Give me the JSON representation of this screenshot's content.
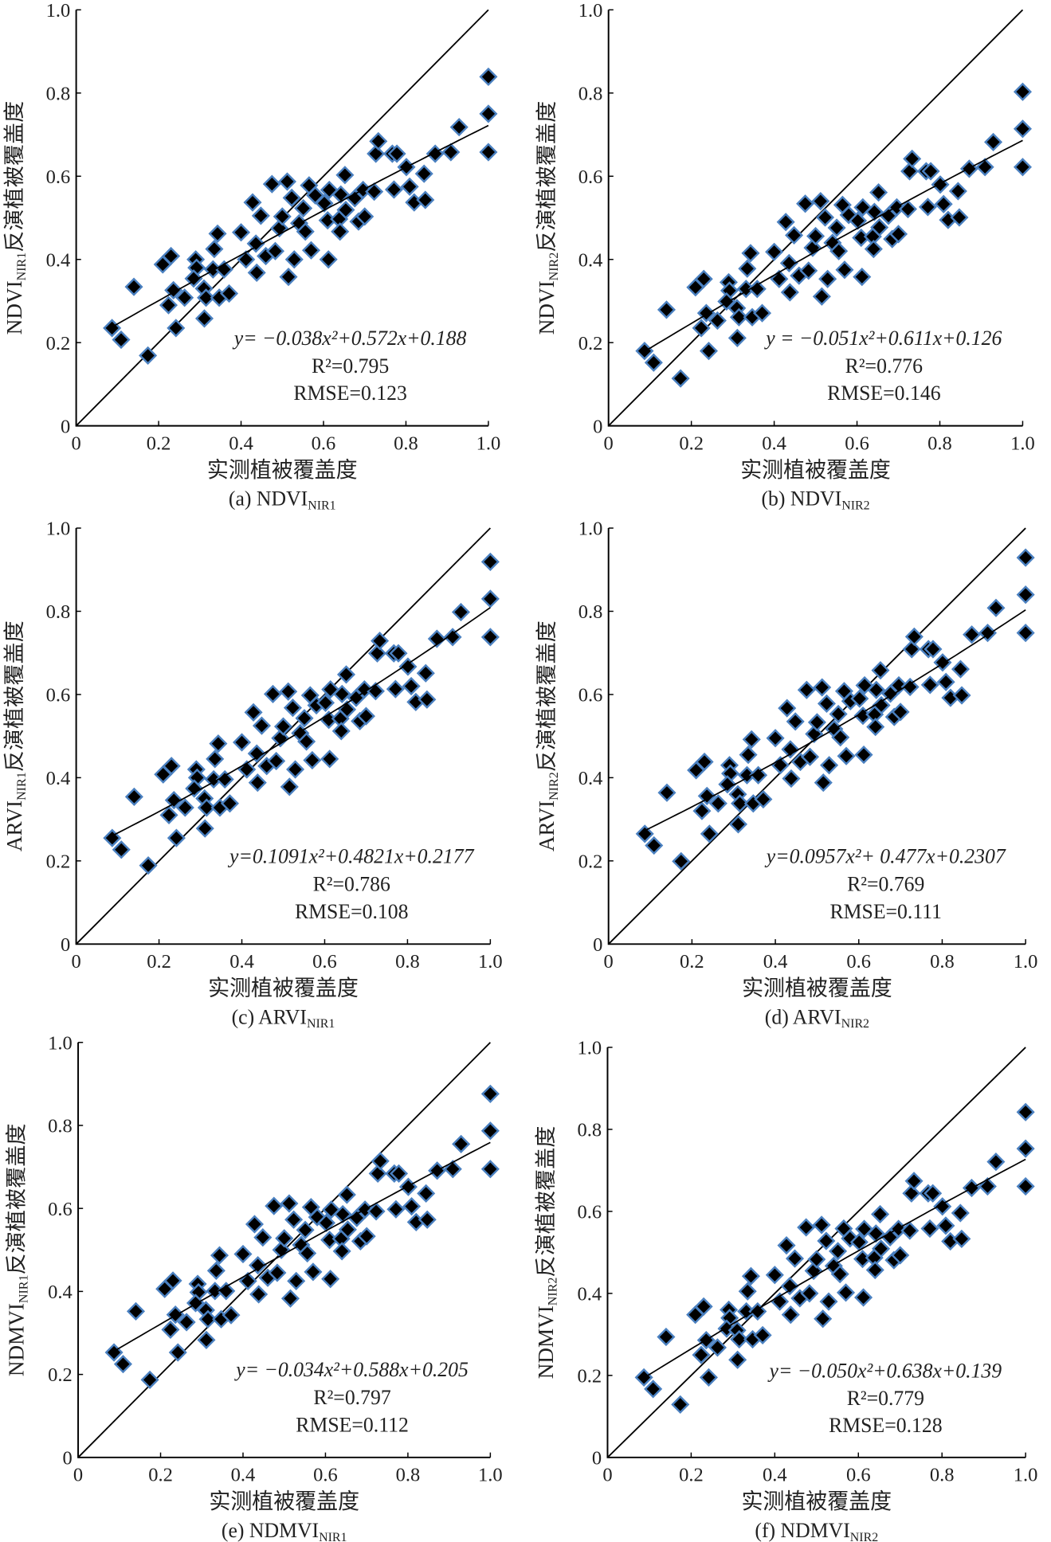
{
  "chart_data": [
    {
      "id": "a",
      "type": "scatter",
      "caption": {
        "main": "(a) NDVI",
        "sub": "NIR1"
      },
      "ylabel": {
        "pre": "NDVI",
        "sub": "NIR1",
        "post": "反演植被覆盖度"
      },
      "xlabel": "实测植被覆盖度",
      "xlim": [
        0,
        1.0
      ],
      "ylim": [
        0,
        1.0
      ],
      "xticks": [
        "0",
        "0.2",
        "0.4",
        "0.6",
        "0.8",
        "1.0"
      ],
      "yticks": [
        "0",
        "0.2",
        "0.4",
        "0.6",
        "0.8",
        "1.0"
      ],
      "fit": {
        "a": -0.038,
        "b": 0.572,
        "c": 0.188
      },
      "equation": "y= −0.038x²+0.572x+0.188",
      "r2": "R²=0.795",
      "rmse": "RMSE=0.123",
      "y": [
        0.235,
        0.207,
        0.169,
        0.334,
        0.388,
        0.408,
        0.29,
        0.326,
        0.235,
        0.308,
        0.4,
        0.38,
        0.354,
        0.33,
        0.258,
        0.308,
        0.376,
        0.425,
        0.462,
        0.308,
        0.376,
        0.318,
        0.465,
        0.4,
        0.537,
        0.438,
        0.368,
        0.505,
        0.408,
        0.581,
        0.42,
        0.475,
        0.503,
        0.587,
        0.358,
        0.548,
        0.4,
        0.487,
        0.523,
        0.467,
        0.578,
        0.422,
        0.554,
        0.535,
        0.494,
        0.567,
        0.4,
        0.497,
        0.467,
        0.556,
        0.603,
        0.519,
        0.547,
        0.491,
        0.567,
        0.503,
        0.563,
        0.654,
        0.684,
        0.654,
        0.568,
        0.654,
        0.622,
        0.575,
        0.537,
        0.606,
        0.543,
        0.654,
        0.658,
        0.718,
        0.839,
        0.75,
        0.658
      ]
    },
    {
      "id": "b",
      "type": "scatter",
      "caption": {
        "main": "(b) NDVI",
        "sub": "NIR2"
      },
      "ylabel": {
        "pre": "NDVI",
        "sub": "NIR2",
        "post": "反演植被覆盖度"
      },
      "xlabel": "实测植被覆盖度",
      "xlim": [
        0,
        1.0
      ],
      "ylim": [
        0,
        1.0
      ],
      "xticks": [
        "0",
        "0.2",
        "0.4",
        "0.6",
        "0.8",
        "1.0"
      ],
      "yticks": [
        "0",
        "0.2",
        "0.4",
        "0.6",
        "0.8",
        "1.0"
      ],
      "fit": {
        "a": -0.051,
        "b": 0.611,
        "c": 0.126
      },
      "equation": "y = −0.051x²+0.611x+0.126",
      "r2": "R²=0.776",
      "rmse": "RMSE=0.146",
      "y": [
        0.18,
        0.152,
        0.114,
        0.279,
        0.333,
        0.353,
        0.235,
        0.271,
        0.18,
        0.253,
        0.345,
        0.325,
        0.299,
        0.283,
        0.211,
        0.261,
        0.329,
        0.378,
        0.415,
        0.261,
        0.329,
        0.271,
        0.418,
        0.353,
        0.49,
        0.391,
        0.321,
        0.458,
        0.361,
        0.534,
        0.373,
        0.428,
        0.456,
        0.54,
        0.311,
        0.501,
        0.353,
        0.44,
        0.476,
        0.42,
        0.531,
        0.375,
        0.507,
        0.493,
        0.452,
        0.525,
        0.358,
        0.455,
        0.425,
        0.514,
        0.561,
        0.477,
        0.505,
        0.449,
        0.525,
        0.461,
        0.521,
        0.612,
        0.642,
        0.612,
        0.526,
        0.612,
        0.58,
        0.533,
        0.495,
        0.564,
        0.501,
        0.618,
        0.622,
        0.682,
        0.803,
        0.714,
        0.622
      ]
    },
    {
      "id": "c",
      "type": "scatter",
      "caption": {
        "main": "(c) ARVI",
        "sub": "NIR1"
      },
      "ylabel": {
        "pre": "ARVI",
        "sub": "NIR1",
        "post": "反演植被覆盖度"
      },
      "xlabel": "实测植被覆盖度",
      "xlim": [
        0,
        1.0
      ],
      "ylim": [
        0,
        1.0
      ],
      "xticks": [
        "0",
        "0.2",
        "0.4",
        "0.6",
        "0.8",
        "1.0"
      ],
      "yticks": [
        "0",
        "0.2",
        "0.4",
        "0.6",
        "0.8",
        "1.0"
      ],
      "fit": {
        "a": 0.1091,
        "b": 0.4821,
        "c": 0.2177
      },
      "equation": "y=0.1091x²+0.4821x+0.2177",
      "r2": "R²=0.786",
      "rmse": "RMSE=0.108",
      "y": [
        0.255,
        0.227,
        0.189,
        0.354,
        0.408,
        0.428,
        0.31,
        0.346,
        0.255,
        0.328,
        0.42,
        0.4,
        0.374,
        0.35,
        0.278,
        0.328,
        0.396,
        0.445,
        0.482,
        0.328,
        0.396,
        0.338,
        0.485,
        0.42,
        0.557,
        0.458,
        0.388,
        0.525,
        0.428,
        0.601,
        0.44,
        0.495,
        0.523,
        0.607,
        0.378,
        0.568,
        0.42,
        0.507,
        0.543,
        0.487,
        0.598,
        0.442,
        0.574,
        0.58,
        0.539,
        0.612,
        0.445,
        0.542,
        0.512,
        0.601,
        0.648,
        0.564,
        0.592,
        0.536,
        0.612,
        0.548,
        0.608,
        0.699,
        0.729,
        0.699,
        0.613,
        0.699,
        0.667,
        0.62,
        0.582,
        0.651,
        0.588,
        0.734,
        0.738,
        0.798,
        0.919,
        0.83,
        0.738
      ]
    },
    {
      "id": "d",
      "type": "scatter",
      "caption": {
        "main": "(d) ARVI",
        "sub": "NIR2"
      },
      "ylabel": {
        "pre": "ARVI",
        "sub": "NIR2",
        "post": "反演植被覆盖度"
      },
      "xlabel": "实测植被覆盖度",
      "xlim": [
        0,
        1.0
      ],
      "ylim": [
        0,
        1.0
      ],
      "xticks": [
        "0",
        "0.2",
        "0.4",
        "0.6",
        "0.8",
        "1.0"
      ],
      "yticks": [
        "0",
        "0.2",
        "0.4",
        "0.6",
        "0.8",
        "1.0"
      ],
      "fit": {
        "a": 0.0957,
        "b": 0.477,
        "c": 0.2307
      },
      "equation": "y=0.0957x²+ 0.477x+0.2307",
      "r2": "R²=0.769",
      "rmse": "RMSE=0.111",
      "y": [
        0.265,
        0.237,
        0.199,
        0.364,
        0.418,
        0.438,
        0.32,
        0.356,
        0.265,
        0.338,
        0.43,
        0.41,
        0.384,
        0.36,
        0.288,
        0.338,
        0.406,
        0.455,
        0.492,
        0.338,
        0.406,
        0.348,
        0.495,
        0.43,
        0.567,
        0.468,
        0.398,
        0.535,
        0.438,
        0.611,
        0.45,
        0.505,
        0.533,
        0.617,
        0.388,
        0.578,
        0.43,
        0.517,
        0.553,
        0.497,
        0.608,
        0.452,
        0.584,
        0.59,
        0.549,
        0.622,
        0.455,
        0.552,
        0.522,
        0.611,
        0.658,
        0.574,
        0.602,
        0.546,
        0.622,
        0.558,
        0.618,
        0.709,
        0.739,
        0.709,
        0.623,
        0.709,
        0.677,
        0.63,
        0.592,
        0.661,
        0.598,
        0.744,
        0.748,
        0.808,
        0.929,
        0.84,
        0.748
      ]
    },
    {
      "id": "e",
      "type": "scatter",
      "caption": {
        "main": "(e) NDMVI",
        "sub": "NIR1"
      },
      "ylabel": {
        "pre": "NDMVI",
        "sub": "NIR1",
        "post": "反演植被覆盖度"
      },
      "xlabel": "实测植被覆盖度",
      "xlim": [
        0,
        1.0
      ],
      "ylim": [
        0,
        1.0
      ],
      "xticks": [
        "0",
        "0.2",
        "0.4",
        "0.6",
        "0.8",
        "1.0"
      ],
      "yticks": [
        "0",
        "0.2",
        "0.4",
        "0.6",
        "0.8",
        "1.0"
      ],
      "fit": {
        "a": -0.034,
        "b": 0.588,
        "c": 0.205
      },
      "equation": "y= −0.034x²+0.588x+0.205",
      "r2": "R²=0.797",
      "rmse": "RMSE=0.112",
      "y": [
        0.253,
        0.225,
        0.187,
        0.352,
        0.406,
        0.426,
        0.308,
        0.344,
        0.253,
        0.326,
        0.418,
        0.398,
        0.372,
        0.355,
        0.283,
        0.333,
        0.401,
        0.45,
        0.487,
        0.333,
        0.401,
        0.343,
        0.49,
        0.425,
        0.562,
        0.463,
        0.393,
        0.53,
        0.433,
        0.606,
        0.445,
        0.5,
        0.528,
        0.612,
        0.383,
        0.573,
        0.425,
        0.512,
        0.548,
        0.492,
        0.603,
        0.447,
        0.579,
        0.565,
        0.524,
        0.597,
        0.43,
        0.527,
        0.497,
        0.586,
        0.633,
        0.549,
        0.577,
        0.521,
        0.597,
        0.533,
        0.593,
        0.684,
        0.714,
        0.684,
        0.598,
        0.684,
        0.652,
        0.605,
        0.567,
        0.636,
        0.573,
        0.691,
        0.695,
        0.755,
        0.876,
        0.787,
        0.695
      ]
    },
    {
      "id": "f",
      "type": "scatter",
      "caption": {
        "main": "(f) NDMVI",
        "sub": "NIR2"
      },
      "ylabel": {
        "pre": "NDMVI",
        "sub": "NIR2",
        "post": "反演植被覆盖度"
      },
      "xlabel": "实测植被覆盖度",
      "xlim": [
        0,
        1.0
      ],
      "ylim": [
        0,
        1.0
      ],
      "xticks": [
        "0",
        "0.2",
        "0.4",
        "0.6",
        "0.8",
        "1.0"
      ],
      "yticks": [
        "0",
        "0.2",
        "0.4",
        "0.6",
        "0.8",
        "1.0"
      ],
      "fit": {
        "a": -0.05,
        "b": 0.638,
        "c": 0.139
      },
      "equation": "y= −0.050x²+0.638x+0.139",
      "r2": "R²=0.779",
      "rmse": "RMSE=0.128",
      "y": [
        0.195,
        0.167,
        0.129,
        0.294,
        0.348,
        0.368,
        0.25,
        0.286,
        0.195,
        0.268,
        0.36,
        0.34,
        0.314,
        0.31,
        0.238,
        0.288,
        0.356,
        0.405,
        0.442,
        0.288,
        0.356,
        0.298,
        0.445,
        0.38,
        0.517,
        0.418,
        0.348,
        0.485,
        0.388,
        0.561,
        0.4,
        0.455,
        0.483,
        0.567,
        0.338,
        0.528,
        0.38,
        0.467,
        0.503,
        0.447,
        0.558,
        0.402,
        0.534,
        0.525,
        0.484,
        0.557,
        0.39,
        0.487,
        0.457,
        0.546,
        0.593,
        0.509,
        0.537,
        0.481,
        0.557,
        0.493,
        0.553,
        0.644,
        0.674,
        0.644,
        0.558,
        0.644,
        0.612,
        0.565,
        0.527,
        0.596,
        0.533,
        0.657,
        0.661,
        0.721,
        0.842,
        0.753,
        0.661
      ]
    }
  ],
  "shared_x": [
    0.087,
    0.109,
    0.174,
    0.14,
    0.21,
    0.23,
    0.224,
    0.236,
    0.242,
    0.263,
    0.29,
    0.292,
    0.285,
    0.31,
    0.311,
    0.315,
    0.332,
    0.335,
    0.343,
    0.347,
    0.359,
    0.371,
    0.4,
    0.412,
    0.428,
    0.436,
    0.438,
    0.448,
    0.46,
    0.475,
    0.483,
    0.493,
    0.5,
    0.512,
    0.515,
    0.523,
    0.529,
    0.541,
    0.551,
    0.556,
    0.565,
    0.57,
    0.58,
    0.602,
    0.61,
    0.614,
    0.612,
    0.638,
    0.64,
    0.642,
    0.652,
    0.654,
    0.676,
    0.685,
    0.696,
    0.7,
    0.723,
    0.727,
    0.733,
    0.767,
    0.771,
    0.778,
    0.801,
    0.809,
    0.82,
    0.844,
    0.847,
    0.871,
    0.909,
    0.929,
    1.0,
    1.0,
    1.0
  ],
  "colors": {
    "marker_fill": "#000000",
    "marker_edge": "#4a80c0",
    "line": "#000000"
  }
}
